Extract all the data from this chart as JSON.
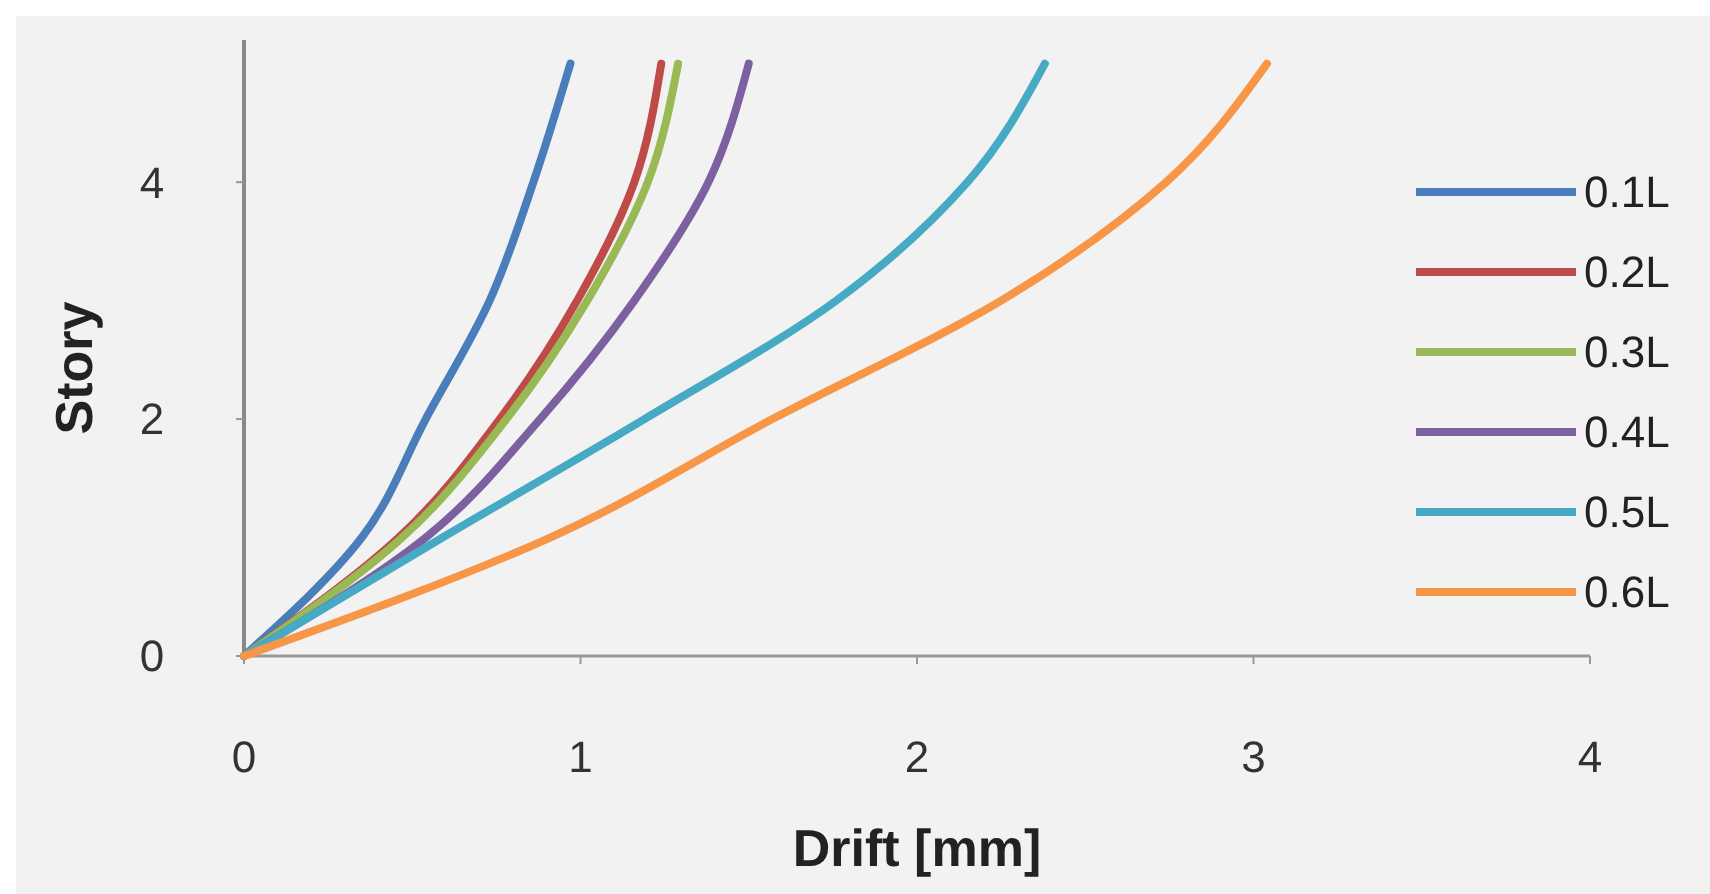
{
  "chart_data": {
    "type": "line",
    "xlabel": "Drift [mm]",
    "ylabel": "Story",
    "xlim": [
      0,
      4
    ],
    "xticks": [
      0,
      1,
      2,
      3,
      4
    ],
    "ylim": [
      0,
      5.2
    ],
    "yticks": [
      0,
      2,
      4
    ],
    "grid": false,
    "legend": "right",
    "marker": "none",
    "line_style": "solid",
    "series": [
      {
        "name": "0.1L",
        "color": "#4a7ebb",
        "x": [
          0,
          0.35,
          0.54,
          0.73,
          0.86,
          0.97
        ],
        "values": [
          0,
          1,
          2,
          3,
          4,
          5
        ]
      },
      {
        "name": "0.2L",
        "color": "#be4b48",
        "x": [
          0,
          0.46,
          0.76,
          0.99,
          1.16,
          1.24
        ],
        "values": [
          0,
          1,
          2,
          3,
          4,
          5
        ]
      },
      {
        "name": "0.3L",
        "color": "#98b954",
        "x": [
          0,
          0.47,
          0.78,
          1.02,
          1.2,
          1.29
        ],
        "values": [
          0,
          1,
          2,
          3,
          4,
          5
        ]
      },
      {
        "name": "0.4L",
        "color": "#7d60a0",
        "x": [
          0,
          0.54,
          0.88,
          1.16,
          1.38,
          1.5
        ],
        "values": [
          0,
          1,
          2,
          3,
          4,
          5
        ]
      },
      {
        "name": "0.5L",
        "color": "#46aac5",
        "x": [
          0,
          0.59,
          1.19,
          1.76,
          2.15,
          2.38
        ],
        "values": [
          0,
          1,
          2,
          3,
          4,
          5
        ]
      },
      {
        "name": "0.6L",
        "color": "#f79646",
        "x": [
          0,
          0.91,
          1.57,
          2.25,
          2.74,
          3.04
        ],
        "values": [
          0,
          1,
          2,
          3,
          4,
          5
        ]
      }
    ]
  }
}
